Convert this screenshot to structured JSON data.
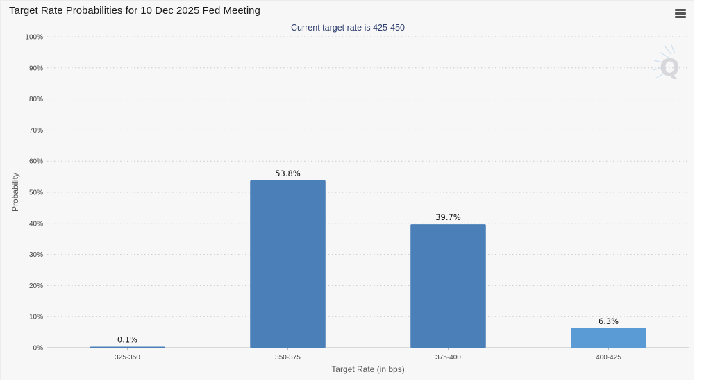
{
  "window": {
    "title": "Target Rate Probabilities for 10 Dec 2025 Fed Meeting",
    "menu_icon": "hamburger-menu-icon",
    "watermark_icon": "q-logo-icon"
  },
  "chart_data": {
    "type": "bar",
    "title": "Target Rate Probabilities for 10 Dec 2025 Fed Meeting",
    "subtitle": "Current target rate is 425-450",
    "xlabel": "Target Rate (in bps)",
    "ylabel": "Probability",
    "categories": [
      "325-350",
      "350-375",
      "375-400",
      "400-425"
    ],
    "values": [
      0.1,
      53.8,
      39.7,
      6.3
    ],
    "data_labels": [
      "0.1%",
      "53.8%",
      "39.7%",
      "6.3%"
    ],
    "bar_colors": [
      "#4a7fb8",
      "#4a7fb8",
      "#4a7fb8",
      "#5b9bd5"
    ],
    "ylim": [
      0,
      100
    ],
    "yticks": [
      0,
      10,
      20,
      30,
      40,
      50,
      60,
      70,
      80,
      90,
      100
    ],
    "ytick_labels": [
      "0%",
      "10%",
      "20%",
      "30%",
      "40%",
      "50%",
      "60%",
      "70%",
      "80%",
      "90%",
      "100%"
    ],
    "grid": true,
    "legend": "none"
  }
}
